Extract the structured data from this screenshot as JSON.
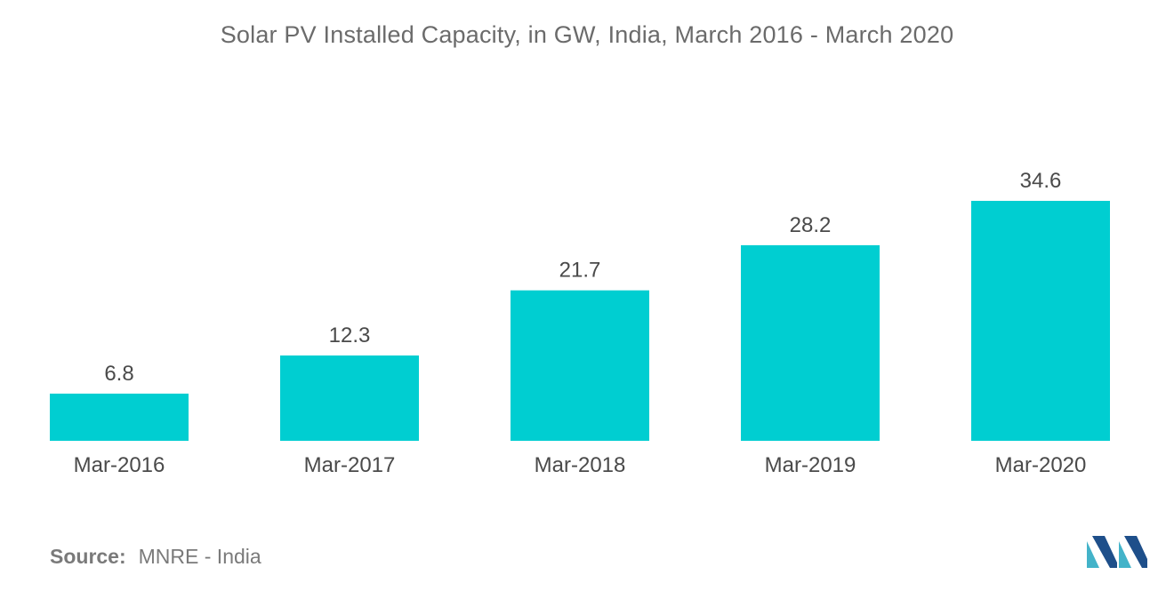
{
  "chart_data": {
    "type": "bar",
    "title": "Solar PV Installed Capacity, in GW, India, March 2016 - March 2020",
    "categories": [
      "Mar-2016",
      "Mar-2017",
      "Mar-2018",
      "Mar-2019",
      "Mar-2020"
    ],
    "values": [
      6.8,
      12.3,
      21.7,
      28.2,
      34.6
    ],
    "value_labels": [
      "6.8",
      "12.3",
      "21.7",
      "28.2",
      "34.6"
    ],
    "xlabel": "",
    "ylabel": "",
    "ylim": [
      0,
      34.6
    ],
    "grid": false,
    "legend": "none",
    "bar_color": "#00CED1"
  },
  "source": {
    "label": "Source:",
    "text": "MNRE - India"
  },
  "logo": {
    "icon": "mordor-intelligence-logo-icon",
    "color_dark": "#1e4f8a",
    "color_light": "#43b3c9"
  }
}
